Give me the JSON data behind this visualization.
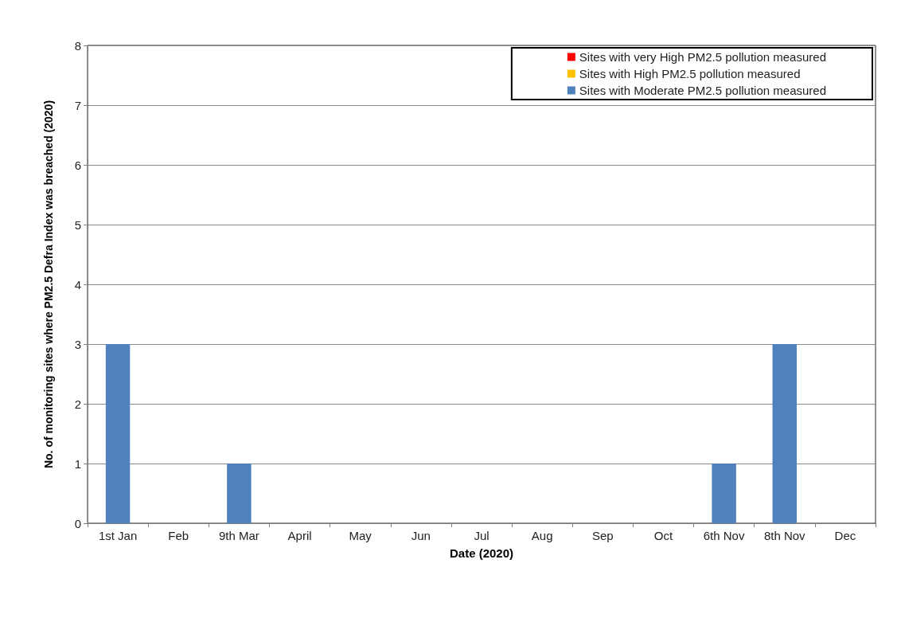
{
  "chart_data": {
    "type": "bar",
    "xlabel": "Date (2020)",
    "ylabel": "No. of monitoring sites where PM2.5 Defra Index was breached (2020)",
    "categories": [
      "1st Jan",
      "Feb",
      "9th Mar",
      "April",
      "May",
      "Jun",
      "Jul",
      "Aug",
      "Sep",
      "Oct",
      "6th Nov",
      "8th Nov",
      "Dec"
    ],
    "series": [
      {
        "name": "Sites with Moderate PM2.5 pollution measured",
        "color": "#4f81bd",
        "values": [
          3,
          0,
          1,
          0,
          0,
          0,
          0,
          0,
          0,
          0,
          1,
          3,
          0
        ]
      },
      {
        "name": "Sites with High PM2.5 pollution measured",
        "color": "#ffc000",
        "values": [
          0,
          0,
          0,
          0,
          0,
          0,
          0,
          0,
          0,
          0,
          0,
          0,
          0
        ]
      },
      {
        "name": "Sites with very High PM2.5 pollution measured",
        "color": "#ff0000",
        "values": [
          0,
          0,
          0,
          0,
          0,
          0,
          0,
          0,
          0,
          0,
          0,
          0,
          0
        ]
      }
    ],
    "stacked": true,
    "ylim": [
      0,
      8
    ],
    "yticks": [
      0,
      1,
      2,
      3,
      4,
      5,
      6,
      7,
      8
    ],
    "grid": "y",
    "legend": "top right"
  }
}
